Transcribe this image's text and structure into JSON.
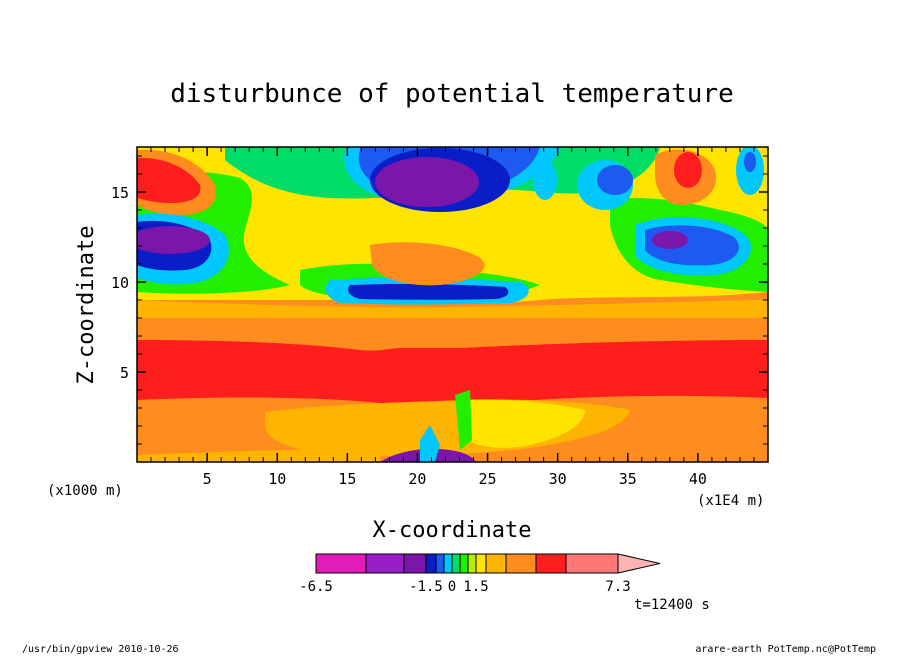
{
  "chart_data": {
    "type": "heatmap",
    "title": "disturbunce of potential temperature",
    "xlabel": "X-coordinate",
    "ylabel": "Z-coordinate",
    "x_unit": "(x1000 m)",
    "x_secondary_unit": "(x1E4 m)",
    "xlim": [
      0,
      45
    ],
    "ylim": [
      0,
      17.5
    ],
    "x_ticks": [
      5,
      10,
      15,
      20,
      25,
      30,
      35,
      40
    ],
    "y_ticks": [
      5,
      10,
      15
    ],
    "colorbar": {
      "levels": [
        -6.5,
        -5.5,
        -4.5,
        -1.5,
        -1.0,
        -0.5,
        0,
        0.5,
        1.0,
        1.5,
        2.5,
        3.5,
        4.5,
        5.5,
        7.3
      ],
      "colors": [
        "#e21cb8",
        "#9a1ec8",
        "#7a16aa",
        "#0a1ec8",
        "#1e5af0",
        "#00c8ff",
        "#00dd66",
        "#22ee00",
        "#b4ee00",
        "#ffe400",
        "#ffb400",
        "#ff8c1e",
        "#ff1e1e",
        "#ff7676",
        "#ffb4b4"
      ],
      "tick_labels": [
        "-6.5",
        "-1.5",
        "0",
        "1.5",
        "7.3"
      ]
    },
    "grid": false
  },
  "time_label": "t=12400 s",
  "footer": {
    "left": "/usr/bin/gpview  2010-10-26",
    "right": "arare-earth_PotTemp.nc@PotTemp"
  },
  "colors": {
    "purple": "#7a16aa",
    "navy": "#0a1ec8",
    "blue": "#1e5af0",
    "cyan": "#00c8ff",
    "green": "#00dd66",
    "lime": "#22ee00",
    "yellow_green": "#b4ee00",
    "yellow": "#ffe400",
    "light_orange": "#ffb400",
    "orange": "#ff8c1e",
    "red": "#ff1e1e"
  }
}
